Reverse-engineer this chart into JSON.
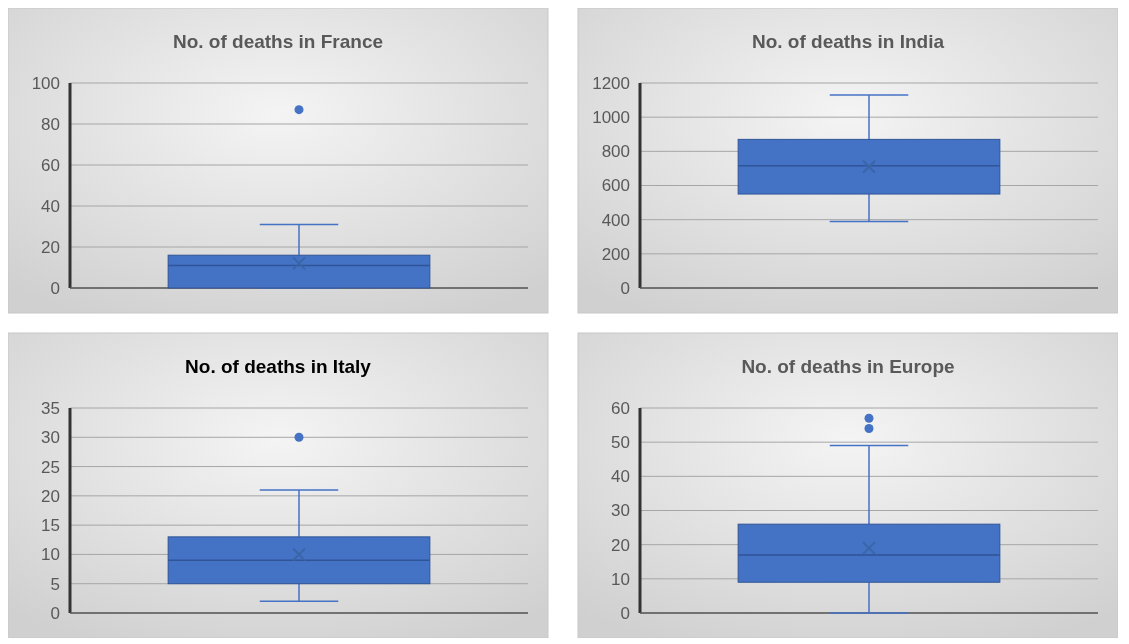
{
  "chart_data": [
    {
      "type": "box",
      "title": "No. of deaths in France",
      "categories": [
        null
      ],
      "color": "#4472c4",
      "boxes": [
        {
          "low": 0,
          "q1": 0,
          "median": 11,
          "q3": 16,
          "high": 31,
          "mean": 12,
          "outliers": [
            87
          ]
        }
      ],
      "ylim": [
        0,
        100
      ],
      "yticks": [
        0,
        20,
        40,
        60,
        80,
        100
      ],
      "grid": "y"
    },
    {
      "type": "box",
      "title": "No. of deaths in India",
      "categories": [
        null
      ],
      "color": "#4472c4",
      "boxes": [
        {
          "low": 390,
          "q1": 550,
          "median": 715,
          "q3": 870,
          "high": 1130,
          "mean": 710
        }
      ],
      "ylim": [
        0,
        1200
      ],
      "yticks": [
        0,
        200,
        400,
        600,
        800,
        1000,
        1200
      ],
      "grid": "y"
    },
    {
      "type": "box",
      "title": "No. of deaths in Italy",
      "categories": [
        null
      ],
      "color": "#4472c4",
      "boxes": [
        {
          "low": 2,
          "q1": 5,
          "median": 9,
          "q3": 13,
          "high": 21,
          "mean": 10,
          "outliers": [
            30
          ]
        }
      ],
      "ylim": [
        0,
        35
      ],
      "yticks": [
        0,
        5,
        10,
        15,
        20,
        25,
        30,
        35
      ],
      "grid": "y"
    },
    {
      "type": "box",
      "title": "No. of deaths in Europe",
      "categories": [
        null
      ],
      "color": "#4472c4",
      "boxes": [
        {
          "low": 0,
          "q1": 9,
          "median": 17,
          "q3": 26,
          "high": 49,
          "mean": 19,
          "outliers": [
            54,
            57
          ]
        }
      ],
      "ylim": [
        0,
        60
      ],
      "yticks": [
        0,
        10,
        20,
        30,
        40,
        50,
        60
      ],
      "grid": "y"
    }
  ]
}
